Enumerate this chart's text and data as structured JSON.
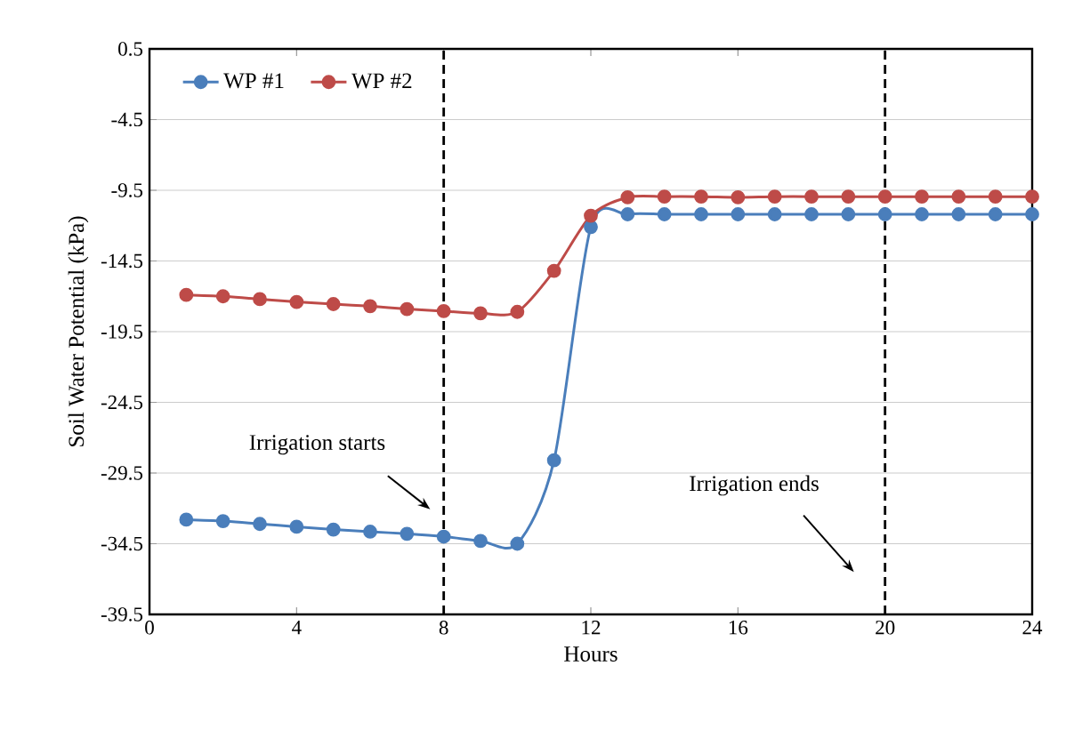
{
  "chart_data": {
    "type": "line",
    "xlabel": "Hours",
    "ylabel": "Soil Water Potential (kPa)",
    "x": [
      1,
      2,
      3,
      4,
      5,
      6,
      7,
      8,
      9,
      10,
      11,
      12,
      13,
      14,
      15,
      16,
      17,
      18,
      19,
      20,
      21,
      22,
      23,
      24
    ],
    "series": [
      {
        "name": "WP #1",
        "color": "#4a7ebb",
        "values": [
          -32.8,
          -32.9,
          -33.1,
          -33.3,
          -33.5,
          -33.65,
          -33.8,
          -34.0,
          -34.3,
          -34.5,
          -28.6,
          -12.1,
          -11.2,
          -11.2,
          -11.2,
          -11.2,
          -11.2,
          -11.2,
          -11.2,
          -11.2,
          -11.2,
          -11.2,
          -11.2,
          -11.2
        ]
      },
      {
        "name": "WP #2",
        "color": "#be4b48",
        "values": [
          -16.9,
          -17.0,
          -17.2,
          -17.4,
          -17.55,
          -17.7,
          -17.9,
          -18.05,
          -18.2,
          -18.1,
          -15.2,
          -11.3,
          -10.0,
          -9.95,
          -9.95,
          -10.0,
          -9.95,
          -9.95,
          -9.95,
          -9.95,
          -9.95,
          -9.95,
          -9.95,
          -9.95
        ]
      }
    ],
    "xlim": [
      0,
      24
    ],
    "xticks": [
      0,
      4,
      8,
      12,
      16,
      20,
      24
    ],
    "ylim": [
      -39.5,
      0.5
    ],
    "yticks": [
      0.5,
      -4.5,
      -9.5,
      -14.5,
      -19.5,
      -24.5,
      -29.5,
      -34.5,
      -39.5
    ],
    "grid": "y",
    "legend": "top left",
    "marker": "circle",
    "line_style": "solid",
    "ref_lines": [
      {
        "axis": "x",
        "value": 8,
        "color": "#000000",
        "line_style": "dashed"
      },
      {
        "axis": "x",
        "value": 20,
        "color": "#000000",
        "line_style": "dashed"
      }
    ],
    "annotations": [
      "Irrigation starts",
      "Irrigation ends"
    ]
  }
}
